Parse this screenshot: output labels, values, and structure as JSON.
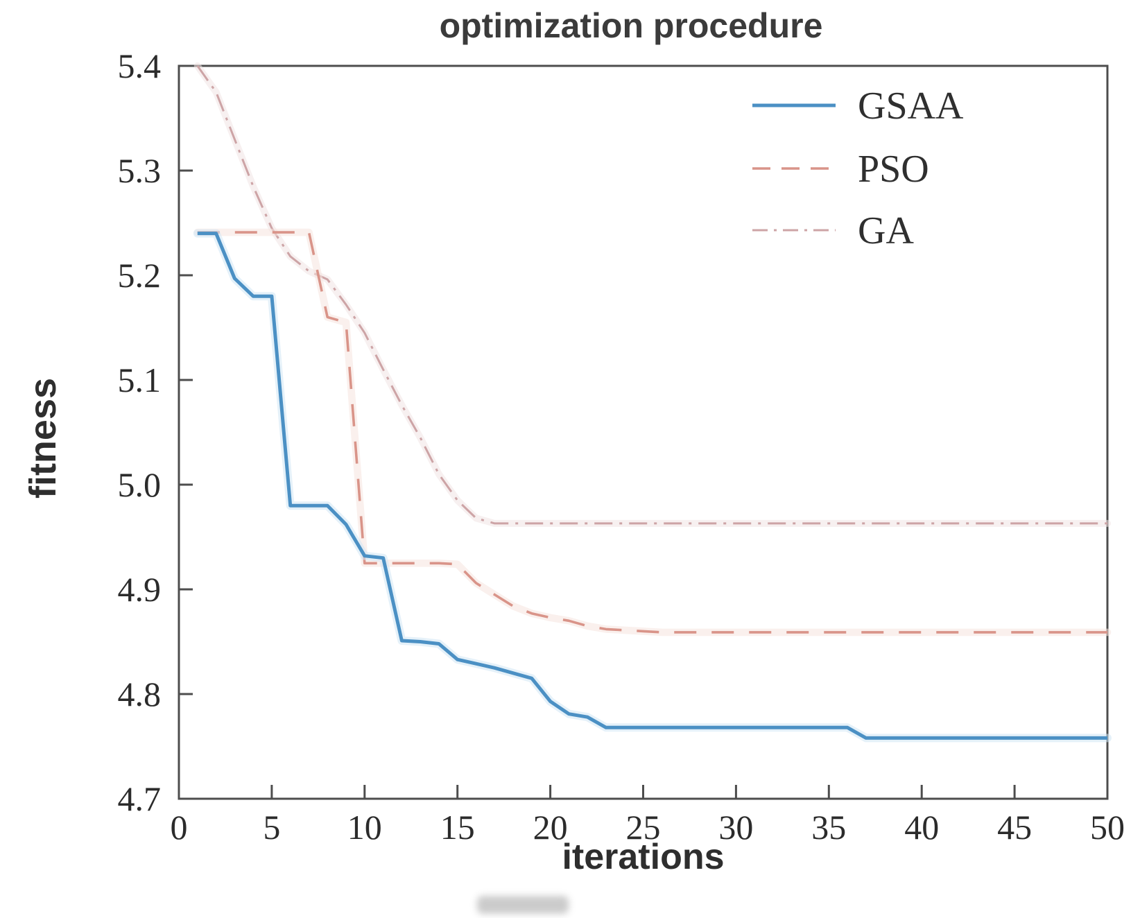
{
  "chart_data": {
    "type": "line",
    "title": "optimization procedure",
    "xlabel": "iterations",
    "ylabel": "fitness",
    "xlim": [
      0,
      50
    ],
    "ylim": [
      4.7,
      5.4
    ],
    "xticks": [
      0,
      5,
      10,
      15,
      20,
      25,
      30,
      35,
      40,
      45,
      50
    ],
    "ytick_labels": [
      "4.7",
      "4.8",
      "4.9",
      "5.0",
      "5.1",
      "5.2",
      "5.3",
      "5.4"
    ],
    "yticks": [
      4.7,
      4.8,
      4.9,
      5.0,
      5.1,
      5.2,
      5.3,
      5.4
    ],
    "grid": false,
    "legend_position": "upper right",
    "x_values": [
      1,
      2,
      3,
      4,
      5,
      6,
      7,
      8,
      9,
      10,
      11,
      12,
      13,
      14,
      15,
      16,
      17,
      18,
      19,
      20,
      21,
      22,
      23,
      24,
      25,
      26,
      27,
      28,
      29,
      30,
      31,
      32,
      33,
      34,
      35,
      36,
      37,
      38,
      39,
      40,
      41,
      42,
      43,
      44,
      45,
      46,
      47,
      48,
      49,
      50
    ],
    "series": [
      {
        "name": "GSAA",
        "color": "#4b90c4",
        "halo_color": "#cfe6f4",
        "line_style": "solid",
        "values": [
          5.24,
          5.24,
          5.197,
          5.18,
          5.18,
          4.98,
          4.98,
          4.98,
          4.962,
          4.932,
          4.93,
          4.851,
          4.85,
          4.848,
          4.833,
          4.829,
          4.825,
          4.82,
          4.815,
          4.793,
          4.781,
          4.778,
          4.768,
          4.768,
          4.768,
          4.768,
          4.768,
          4.768,
          4.768,
          4.768,
          4.768,
          4.768,
          4.768,
          4.768,
          4.768,
          4.768,
          4.758,
          4.758,
          4.758,
          4.758,
          4.758,
          4.758,
          4.758,
          4.758,
          4.758,
          4.758,
          4.758,
          4.758,
          4.758,
          4.758
        ]
      },
      {
        "name": "PSO",
        "color": "#d99489",
        "halo_color": "#f6e3de",
        "line_style": "dashed",
        "values": [
          5.241,
          5.241,
          5.241,
          5.241,
          5.241,
          5.241,
          5.241,
          5.16,
          5.155,
          4.925,
          4.925,
          4.925,
          4.925,
          4.925,
          4.924,
          4.906,
          4.895,
          4.884,
          4.877,
          4.873,
          4.87,
          4.865,
          4.862,
          4.861,
          4.86,
          4.859,
          4.859,
          4.859,
          4.859,
          4.859,
          4.859,
          4.859,
          4.859,
          4.859,
          4.859,
          4.859,
          4.859,
          4.859,
          4.859,
          4.859,
          4.859,
          4.859,
          4.859,
          4.859,
          4.859,
          4.859,
          4.859,
          4.859,
          4.859,
          4.859
        ]
      },
      {
        "name": "GA",
        "color": "#cda4a6",
        "halo_color": "#f0e3e4",
        "line_style": "dashdot",
        "values": [
          5.4,
          5.375,
          5.33,
          5.285,
          5.245,
          5.218,
          5.204,
          5.196,
          5.172,
          5.145,
          5.11,
          5.076,
          5.045,
          5.01,
          4.985,
          4.968,
          4.963,
          4.963,
          4.963,
          4.963,
          4.963,
          4.963,
          4.963,
          4.963,
          4.963,
          4.963,
          4.963,
          4.963,
          4.963,
          4.963,
          4.963,
          4.963,
          4.963,
          4.963,
          4.963,
          4.963,
          4.963,
          4.963,
          4.963,
          4.963,
          4.963,
          4.963,
          4.963,
          4.963,
          4.963,
          4.963,
          4.963,
          4.963,
          4.963,
          4.963
        ]
      }
    ],
    "legend_entries": [
      "GSAA",
      "PSO",
      "GA"
    ],
    "axis_color": "#4d4d4d",
    "tick_label_color": "#2b2b2b"
  }
}
